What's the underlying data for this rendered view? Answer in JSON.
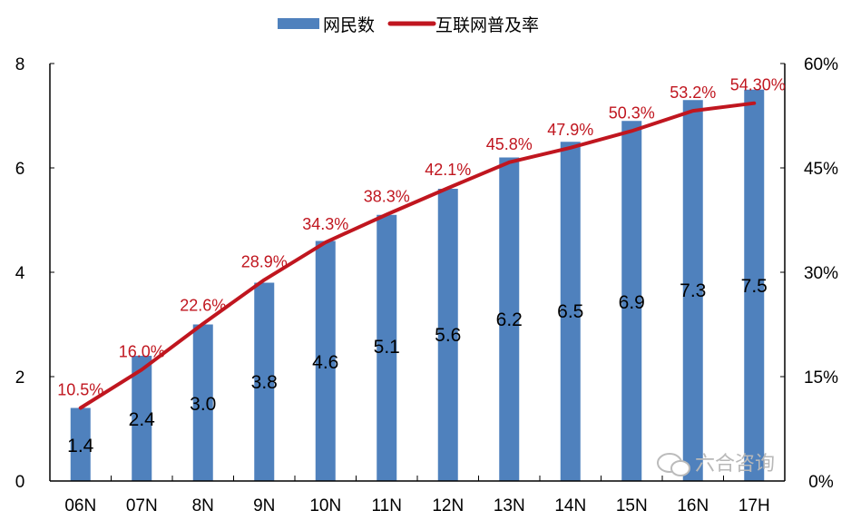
{
  "chart_data": {
    "type": "bar+line",
    "categories": [
      "06N",
      "07N",
      "8N",
      "9N",
      "10N",
      "11N",
      "12N",
      "13N",
      "14N",
      "15N",
      "16N",
      "17H"
    ],
    "series": [
      {
        "name": "网民数",
        "type": "bar",
        "axis": "left",
        "color": "#4F81BD",
        "values": [
          1.4,
          2.4,
          3.0,
          3.8,
          4.6,
          5.1,
          5.6,
          6.2,
          6.5,
          6.9,
          7.3,
          7.5
        ],
        "labels": [
          "1.4",
          "2.4",
          "3.0",
          "3.8",
          "4.6",
          "5.1",
          "5.6",
          "6.2",
          "6.5",
          "6.9",
          "7.3",
          "7.5"
        ]
      },
      {
        "name": "互联网普及率",
        "type": "line",
        "axis": "right",
        "color": "#C0161F",
        "values": [
          10.5,
          16.0,
          22.6,
          28.9,
          34.3,
          38.3,
          42.1,
          45.8,
          47.9,
          50.3,
          53.2,
          54.3
        ],
        "labels": [
          "10.5%",
          "16.0%",
          "22.6%",
          "28.9%",
          "34.3%",
          "38.3%",
          "42.1%",
          "45.8%",
          "47.9%",
          "50.3%",
          "53.2%",
          "54.30%"
        ]
      }
    ],
    "y_left": {
      "range": [
        0,
        8
      ],
      "ticks": [
        "0",
        "2",
        "4",
        "6",
        "8"
      ]
    },
    "y_right": {
      "range": [
        0,
        60
      ],
      "ticks": [
        "0%",
        "15%",
        "30%",
        "45%",
        "60%"
      ]
    },
    "legend_position": "top-center",
    "grid": false
  },
  "watermark": "六合咨询"
}
